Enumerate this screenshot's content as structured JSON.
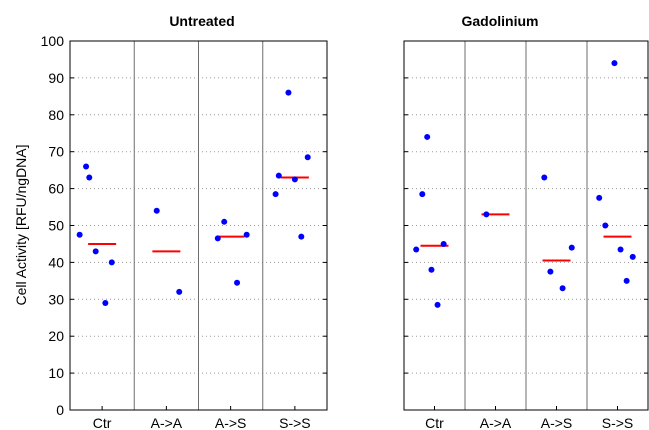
{
  "chart_data": [
    {
      "type": "scatter",
      "title": "Untreated",
      "ylabel": "Cell Activity [RFU/ngDNA]",
      "xlabel": "",
      "categories": [
        "Ctr",
        "A->A",
        "A->S",
        "S->S"
      ],
      "ylim": [
        0,
        100
      ],
      "yticks": [
        0,
        10,
        20,
        30,
        40,
        50,
        60,
        70,
        80,
        90,
        100
      ],
      "grid": "horizontal dotted",
      "points": [
        [
          {
            "x": -0.35,
            "y": 47.5
          },
          {
            "x": -0.25,
            "y": 66
          },
          {
            "x": -0.2,
            "y": 63
          },
          {
            "x": -0.1,
            "y": 43
          },
          {
            "x": 0.05,
            "y": 29
          },
          {
            "x": 0.15,
            "y": 40
          }
        ],
        [
          {
            "x": -0.15,
            "y": 54
          },
          {
            "x": 0.2,
            "y": 32
          }
        ],
        [
          {
            "x": -0.2,
            "y": 46.5
          },
          {
            "x": -0.1,
            "y": 51
          },
          {
            "x": 0.1,
            "y": 34.5
          },
          {
            "x": 0.25,
            "y": 47.5
          }
        ],
        [
          {
            "x": -0.3,
            "y": 58.5
          },
          {
            "x": -0.25,
            "y": 63.5
          },
          {
            "x": -0.1,
            "y": 86
          },
          {
            "x": 0.0,
            "y": 62.5
          },
          {
            "x": 0.1,
            "y": 47
          },
          {
            "x": 0.2,
            "y": 68.5
          }
        ]
      ],
      "means": [
        45,
        43,
        47,
        63
      ],
      "point_color": "#0000ff",
      "mean_color": "#ff0000"
    },
    {
      "type": "scatter",
      "title": "Gadolinium",
      "ylabel": "",
      "xlabel": "",
      "categories": [
        "Ctr",
        "A->A",
        "A->S",
        "S->S"
      ],
      "ylim": [
        0,
        100
      ],
      "yticks": [
        0,
        10,
        20,
        30,
        40,
        50,
        60,
        70,
        80,
        90,
        100
      ],
      "grid": "horizontal dotted",
      "points": [
        [
          {
            "x": -0.3,
            "y": 43.5
          },
          {
            "x": -0.2,
            "y": 58.5
          },
          {
            "x": -0.12,
            "y": 74
          },
          {
            "x": -0.05,
            "y": 38
          },
          {
            "x": 0.05,
            "y": 28.5
          },
          {
            "x": 0.15,
            "y": 45
          }
        ],
        [
          {
            "x": -0.15,
            "y": 53
          }
        ],
        [
          {
            "x": -0.2,
            "y": 63
          },
          {
            "x": -0.1,
            "y": 37.5
          },
          {
            "x": 0.1,
            "y": 33
          },
          {
            "x": 0.25,
            "y": 44
          }
        ],
        [
          {
            "x": -0.3,
            "y": 57.5
          },
          {
            "x": -0.2,
            "y": 50
          },
          {
            "x": -0.05,
            "y": 94
          },
          {
            "x": 0.05,
            "y": 43.5
          },
          {
            "x": 0.15,
            "y": 35
          },
          {
            "x": 0.25,
            "y": 41.5
          }
        ]
      ],
      "means": [
        44.5,
        53,
        40.5,
        47
      ],
      "point_color": "#0000ff",
      "mean_color": "#ff0000"
    }
  ]
}
